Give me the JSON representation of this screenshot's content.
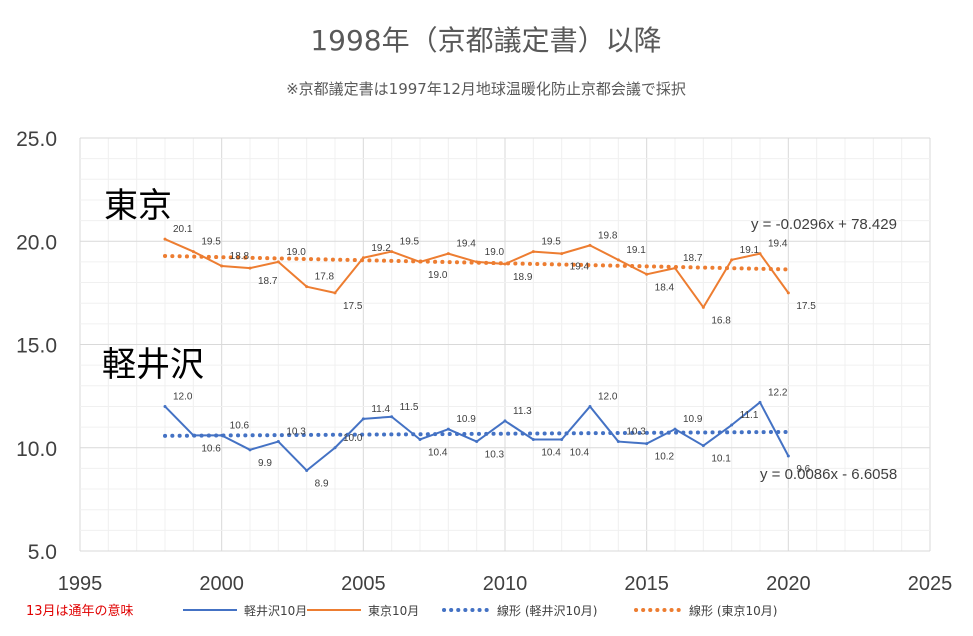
{
  "chart_data": {
    "type": "line",
    "title": "1998年（京都議定書）以降",
    "subtitle": "※京都議定書は1997年12月地球温暖化防止京都会議で採択",
    "xlim": [
      1995,
      2025
    ],
    "ylim": [
      5.0,
      25.0
    ],
    "x_ticks": [
      "1995",
      "2000",
      "2005",
      "2010",
      "2015",
      "2020",
      "2025"
    ],
    "y_ticks": [
      "25.0",
      "20.0",
      "15.0",
      "10.0",
      "5.0"
    ],
    "grid": true,
    "legend_position": "bottom",
    "annotations": {
      "tokyo": "東京",
      "karuizawa": "軽井沢",
      "tokyo_trend_equation": "y = -0.0296x + 78.429",
      "karuizawa_trend_equation": "y = 0.0086x - 6.6058",
      "note": "13月は通年の意味"
    },
    "x": [
      1998,
      1999,
      2000,
      2001,
      2002,
      2003,
      2004,
      2005,
      2006,
      2007,
      2008,
      2009,
      2010,
      2011,
      2012,
      2013,
      2014,
      2015,
      2016,
      2017,
      2018,
      2019,
      2020
    ],
    "series": [
      {
        "name": "軽井沢10月",
        "color": "#4472c4",
        "values": [
          12.0,
          10.6,
          10.6,
          9.9,
          10.3,
          8.9,
          10.0,
          11.4,
          11.5,
          10.4,
          10.9,
          10.3,
          11.3,
          10.4,
          10.4,
          12.0,
          10.3,
          10.2,
          10.9,
          10.1,
          11.1,
          12.2,
          9.6
        ],
        "labels": [
          "12.0",
          "10.6",
          "10.6",
          "9.9",
          "10.3",
          "8.9",
          "10.0",
          "11.4",
          "11.5",
          "10.4",
          "10.9",
          "10.3",
          "11.3",
          "10.4",
          "10.4",
          "12.0",
          "10.3",
          "10.2",
          "10.9",
          "10.1",
          "11.1",
          "12.2",
          "9.6"
        ]
      },
      {
        "name": "東京10月",
        "color": "#ed7d31",
        "values": [
          20.1,
          19.5,
          18.8,
          18.7,
          19.0,
          17.8,
          17.5,
          19.2,
          19.5,
          19.0,
          19.4,
          19.0,
          18.9,
          19.5,
          19.4,
          19.8,
          19.1,
          18.4,
          18.7,
          16.8,
          19.1,
          19.4,
          17.5
        ],
        "labels": [
          "20.1",
          "19.5",
          "18.8",
          "18.7",
          "19.0",
          "17.8",
          "17.5",
          "19.2",
          "19.5",
          "19.0",
          "19.4",
          "19.0",
          "18.9",
          "19.5",
          "19.4",
          "19.8",
          "19.1",
          "18.4",
          "18.7",
          "16.8",
          "19.1",
          "19.4",
          "17.5"
        ]
      }
    ],
    "trendlines": [
      {
        "name": "線形 (軽井沢10月)",
        "color": "#4472c4",
        "slope": 0.0086,
        "intercept": -6.6058
      },
      {
        "name": "線形 (東京10月)",
        "color": "#ed7d31",
        "slope": -0.0296,
        "intercept": 78.429
      }
    ]
  }
}
